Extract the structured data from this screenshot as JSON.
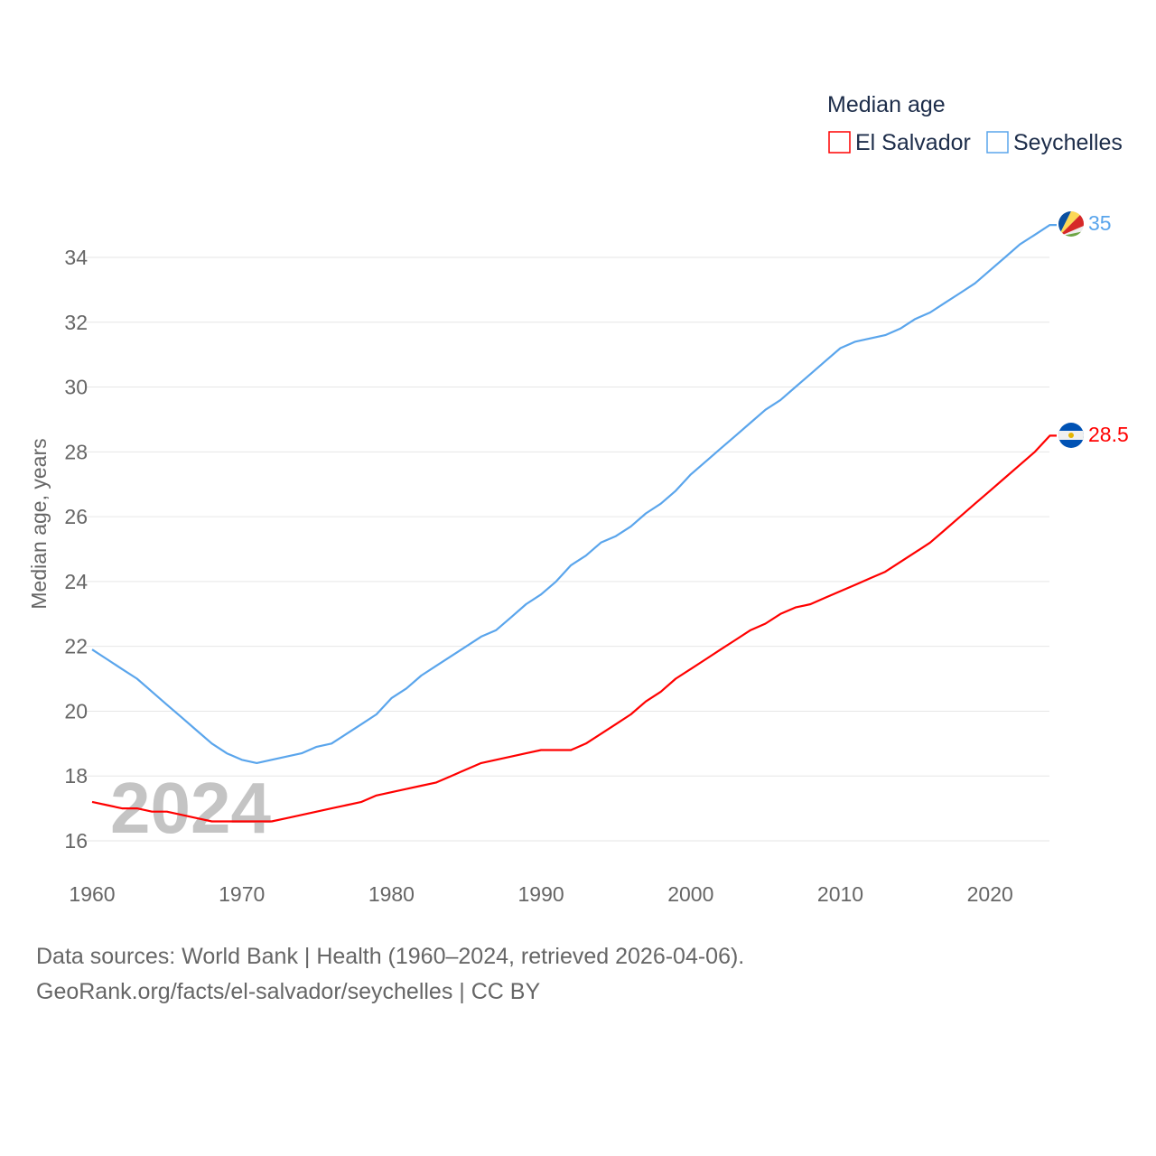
{
  "chart_data": {
    "type": "line",
    "title": "",
    "legend_title": "Median age",
    "legend_position": "top-right",
    "ylabel": "Median age, years",
    "xlabel": "",
    "xlim": [
      1960,
      2024
    ],
    "ylim": [
      15,
      35.5
    ],
    "x_ticks": [
      1960,
      1970,
      1980,
      1990,
      2000,
      2010,
      2020
    ],
    "y_ticks": [
      16,
      18,
      20,
      22,
      24,
      26,
      28,
      30,
      32,
      34
    ],
    "grid": true,
    "year_watermark": "2024",
    "x": [
      1960,
      1961,
      1962,
      1963,
      1964,
      1965,
      1966,
      1967,
      1968,
      1969,
      1970,
      1971,
      1972,
      1973,
      1974,
      1975,
      1976,
      1977,
      1978,
      1979,
      1980,
      1981,
      1982,
      1983,
      1984,
      1985,
      1986,
      1987,
      1988,
      1989,
      1990,
      1991,
      1992,
      1993,
      1994,
      1995,
      1996,
      1997,
      1998,
      1999,
      2000,
      2001,
      2002,
      2003,
      2004,
      2005,
      2006,
      2007,
      2008,
      2009,
      2010,
      2011,
      2012,
      2013,
      2014,
      2015,
      2016,
      2017,
      2018,
      2019,
      2020,
      2021,
      2022,
      2023,
      2024
    ],
    "series": [
      {
        "name": "El Salvador",
        "color": "#ff0000",
        "end_label": "28.5",
        "flag": "el-salvador",
        "values": [
          17.2,
          17.1,
          17.0,
          17.0,
          16.9,
          16.9,
          16.8,
          16.7,
          16.6,
          16.6,
          16.6,
          16.6,
          16.6,
          16.7,
          16.8,
          16.9,
          17.0,
          17.1,
          17.2,
          17.4,
          17.5,
          17.6,
          17.7,
          17.8,
          18.0,
          18.2,
          18.4,
          18.5,
          18.6,
          18.7,
          18.8,
          18.8,
          18.8,
          19.0,
          19.3,
          19.6,
          19.9,
          20.3,
          20.6,
          21.0,
          21.3,
          21.6,
          21.9,
          22.2,
          22.5,
          22.7,
          23.0,
          23.2,
          23.3,
          23.5,
          23.7,
          23.9,
          24.1,
          24.3,
          24.6,
          24.9,
          25.2,
          25.6,
          26.0,
          26.4,
          26.8,
          27.2,
          27.6,
          28.0,
          28.5
        ]
      },
      {
        "name": "Seychelles",
        "color": "#5aa5ec",
        "end_label": "35",
        "flag": "seychelles",
        "values": [
          21.9,
          21.6,
          21.3,
          21.0,
          20.6,
          20.2,
          19.8,
          19.4,
          19.0,
          18.7,
          18.5,
          18.4,
          18.5,
          18.6,
          18.7,
          18.9,
          19.0,
          19.3,
          19.6,
          19.9,
          20.4,
          20.7,
          21.1,
          21.4,
          21.7,
          22.0,
          22.3,
          22.5,
          22.9,
          23.3,
          23.6,
          24.0,
          24.5,
          24.8,
          25.2,
          25.4,
          25.7,
          26.1,
          26.4,
          26.8,
          27.3,
          27.7,
          28.1,
          28.5,
          28.9,
          29.3,
          29.6,
          30.0,
          30.4,
          30.8,
          31.2,
          31.4,
          31.5,
          31.6,
          31.8,
          32.1,
          32.3,
          32.6,
          32.9,
          33.2,
          33.6,
          34.0,
          34.4,
          34.7,
          35.0
        ]
      }
    ]
  },
  "footer": {
    "line1": "Data sources: World Bank | Health (1960–2024, retrieved 2026-04-06).",
    "line2": "GeoRank.org/facts/el-salvador/seychelles | CC BY"
  }
}
